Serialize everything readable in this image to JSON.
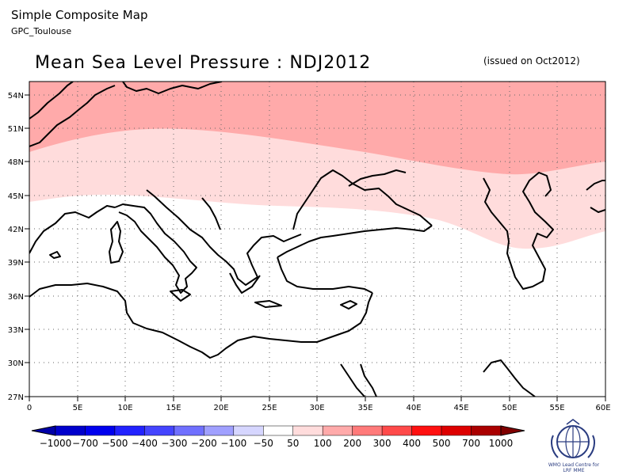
{
  "header": {
    "app_title": "Simple Composite Map",
    "source": "GPC_Toulouse",
    "title": "Mean Sea Level Pressure : NDJ2012",
    "issued": "(issued on Oct2012)"
  },
  "axes": {
    "lat_labels": [
      "54N",
      "51N",
      "48N",
      "45N",
      "42N",
      "39N",
      "36N",
      "33N",
      "30N",
      "27N"
    ],
    "lon_labels": [
      "0",
      "5E",
      "10E",
      "15E",
      "20E",
      "25E",
      "30E",
      "35E",
      "40E",
      "45E",
      "50E",
      "55E",
      "60E"
    ]
  },
  "colorbar": {
    "labels": [
      "−1000",
      "−700",
      "−500",
      "−400",
      "−300",
      "−200",
      "−100",
      "−50",
      "50",
      "100",
      "200",
      "300",
      "400",
      "500",
      "700",
      "1000"
    ],
    "colors": [
      "#0000a8",
      "#0000cc",
      "#0000ee",
      "#2222ff",
      "#4444ff",
      "#7070ff",
      "#a0a0ff",
      "#d6d6ff",
      "#ffffff",
      "#ffdcdc",
      "#ffaaaa",
      "#ff7a7a",
      "#ff4a4a",
      "#ff1010",
      "#dd0000",
      "#aa0000",
      "#800000"
    ]
  },
  "legend_colors": {
    "lowest": "#ffdcdc",
    "middle": "#ffaaaa",
    "land_outline": "#000000"
  },
  "logo": {
    "name": "wmo-logo-icon",
    "caption_line1": "WMO Lead Centre for",
    "caption_line2": "LRF MME"
  }
}
